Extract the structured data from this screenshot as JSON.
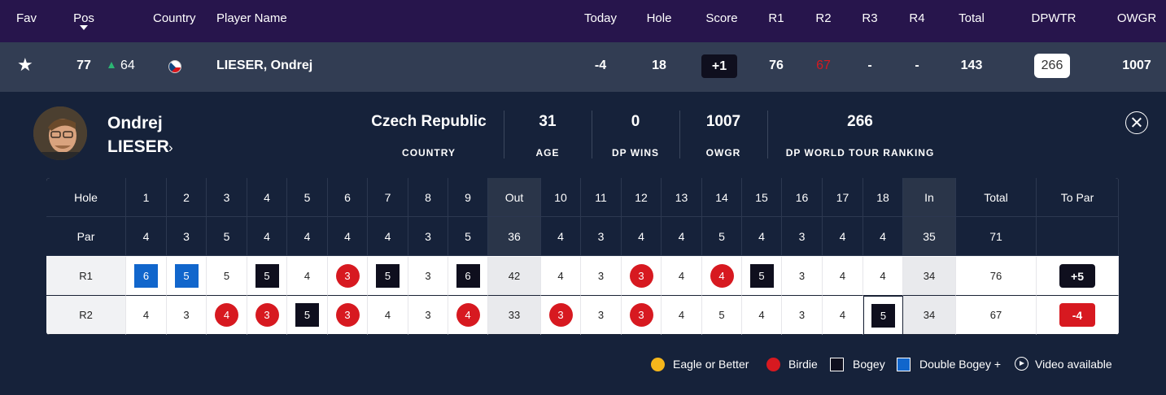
{
  "header": {
    "fav": "Fav",
    "pos": "Pos",
    "country": "Country",
    "player_name": "Player Name",
    "today": "Today",
    "hole": "Hole",
    "score": "Score",
    "r1": "R1",
    "r2": "R2",
    "r3": "R3",
    "r4": "R4",
    "total": "Total",
    "dpwtr": "DPWTR",
    "owgr": "OWGR"
  },
  "player_row": {
    "pos": "77",
    "movement": "64",
    "country_flag": "czech-flag-icon",
    "name": "LIESER, Ondrej",
    "today": "-4",
    "hole": "18",
    "score": "+1",
    "r1": "76",
    "r2": "67",
    "r3": "-",
    "r4": "-",
    "total": "143",
    "dpwtr": "266",
    "owgr": "1007",
    "colors": {
      "r2": "#d71920",
      "movement_up": "#2bb673"
    }
  },
  "profile": {
    "first_name": "Ondrej",
    "last_name": "LIESER",
    "stats": [
      {
        "value": "Czech Republic",
        "label": "COUNTRY"
      },
      {
        "value": "31",
        "label": "AGE"
      },
      {
        "value": "0",
        "label": "DP WINS"
      },
      {
        "value": "1007",
        "label": "OWGR"
      },
      {
        "value": "266",
        "label": "DP WORLD TOUR RANKING"
      }
    ]
  },
  "scorecard": {
    "labels": {
      "hole": "Hole",
      "par": "Par"
    },
    "holes": [
      "1",
      "2",
      "3",
      "4",
      "5",
      "6",
      "7",
      "8",
      "9",
      "Out",
      "10",
      "11",
      "12",
      "13",
      "14",
      "15",
      "16",
      "17",
      "18",
      "In",
      "Total",
      "To Par"
    ],
    "par": [
      "4",
      "3",
      "5",
      "4",
      "4",
      "4",
      "4",
      "3",
      "5",
      "36",
      "4",
      "3",
      "4",
      "4",
      "5",
      "4",
      "3",
      "4",
      "4",
      "35",
      "71",
      ""
    ],
    "rounds": [
      {
        "label": "R1",
        "scores": [
          "6",
          "5",
          "5",
          "5",
          "4",
          "3",
          "5",
          "3",
          "6",
          "42",
          "4",
          "3",
          "3",
          "4",
          "4",
          "5",
          "3",
          "4",
          "4",
          "34",
          "76",
          "+5"
        ],
        "marks": [
          "double",
          "double",
          "",
          "bogey",
          "",
          "birdie",
          "bogey",
          "",
          "bogey",
          "",
          "",
          "",
          "birdie",
          "",
          "birdie",
          "bogey",
          "",
          "",
          "",
          "",
          "",
          ""
        ],
        "to_par_color": "#0f0f1e"
      },
      {
        "label": "R2",
        "scores": [
          "4",
          "3",
          "4",
          "3",
          "5",
          "3",
          "4",
          "3",
          "4",
          "33",
          "3",
          "3",
          "3",
          "4",
          "5",
          "4",
          "3",
          "4",
          "5",
          "34",
          "67",
          "-4"
        ],
        "marks": [
          "",
          "",
          "birdie",
          "birdie",
          "bogey",
          "birdie",
          "",
          "",
          "birdie",
          "",
          "birdie",
          "",
          "birdie",
          "",
          "",
          "",
          "",
          "",
          "bogey",
          "",
          "",
          ""
        ],
        "to_par_color": "#d71920"
      }
    ],
    "current_hole_index": 18
  },
  "legend": {
    "eagle": "Eagle or Better",
    "birdie": "Birdie",
    "bogey": "Bogey",
    "double_bogey": "Double Bogey +",
    "video": "Video available",
    "colors": {
      "eagle": "#f5b61b",
      "birdie": "#d71920",
      "bogey": "#0f0f1e",
      "double": "#1166cc"
    }
  }
}
